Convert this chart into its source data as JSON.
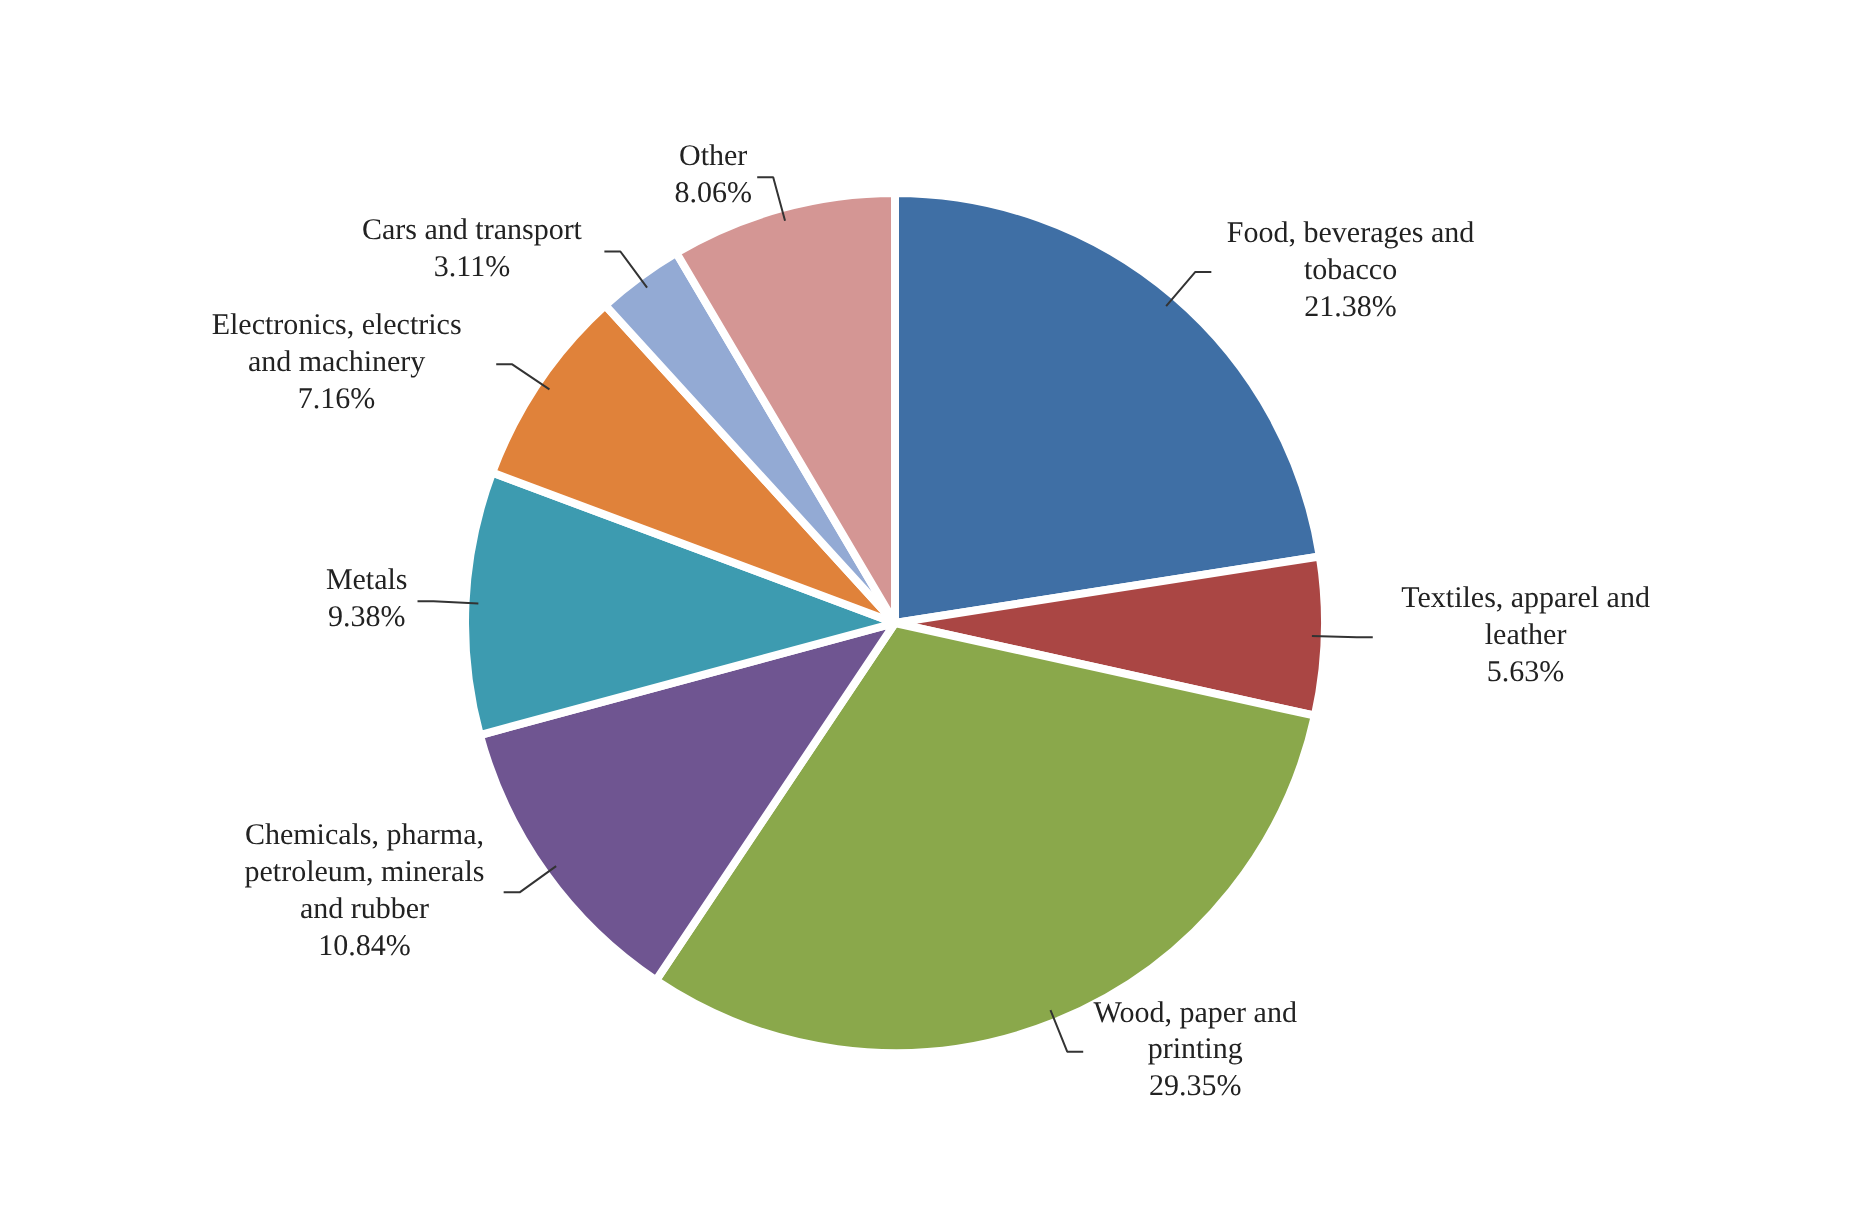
{
  "chart_data": {
    "type": "pie",
    "categories": [
      "Food, beverages and tobacco",
      "Textiles, apparel and leather",
      "Wood, paper and printing",
      "Chemicals, pharma, petroleum, minerals and rubber",
      "Metals",
      "Electronics, electrics and machinery",
      "Cars and transport",
      "Other"
    ],
    "values": [
      21.38,
      5.63,
      29.35,
      10.84,
      9.38,
      7.16,
      3.11,
      8.06
    ],
    "value_labels": [
      "21.38%",
      "5.63%",
      "29.35%",
      "10.84%",
      "9.38%",
      "7.16%",
      "3.11%",
      "8.06%"
    ],
    "colors": [
      "#3f6fa5",
      "#aa4644",
      "#8aa84b",
      "#6f5591",
      "#3d9bb0",
      "#e0823a",
      "#93aad4",
      "#d49694"
    ]
  }
}
